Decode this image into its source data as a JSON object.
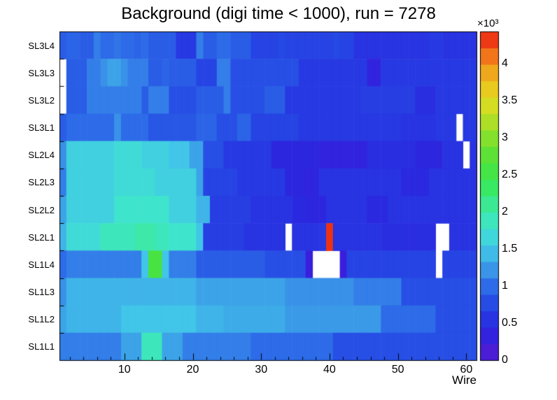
{
  "chart_data": {
    "type": "heatmap",
    "title": "Background (digi time < 1000), run = 7278",
    "xlabel": "Wire",
    "x_range": [
      1,
      61
    ],
    "x_ticks": [
      10,
      20,
      30,
      40,
      50,
      60
    ],
    "z_scale_label": "×10³",
    "z_ticks": [
      0,
      0.5,
      1,
      1.5,
      2,
      2.5,
      3,
      3.5,
      4
    ],
    "zmax": 4433,
    "n_wires": 61,
    "palette_levels": 20,
    "legend_position": "right",
    "grid": false,
    "empty_bin_color": "#ffffff",
    "palette_stops": [
      [
        0.0,
        "#5a1ecf"
      ],
      [
        0.05,
        "#3b1cdb"
      ],
      [
        0.1,
        "#2a28e0"
      ],
      [
        0.17,
        "#2549e4"
      ],
      [
        0.23,
        "#2e6ee8"
      ],
      [
        0.28,
        "#3b99e8"
      ],
      [
        0.34,
        "#41c6e8"
      ],
      [
        0.4,
        "#3fe3d1"
      ],
      [
        0.46,
        "#3de9a2"
      ],
      [
        0.53,
        "#38e95e"
      ],
      [
        0.6,
        "#4ce23b"
      ],
      [
        0.68,
        "#87e02b"
      ],
      [
        0.75,
        "#c1df23"
      ],
      [
        0.8,
        "#e6da20"
      ],
      [
        0.87,
        "#efad1c"
      ],
      [
        0.93,
        "#f2701a"
      ],
      [
        1.0,
        "#ea1b10"
      ]
    ],
    "rows_order": "top_to_bottom",
    "rows": [
      {
        "label": "SL3L4",
        "values": [
          900,
          950,
          950,
          900,
          900,
          1100,
          1000,
          1000,
          1050,
          1000,
          1000,
          950,
          1000,
          900,
          900,
          900,
          900,
          600,
          600,
          600,
          1100,
          900,
          900,
          1000,
          1000,
          900,
          900,
          900,
          700,
          700,
          700,
          700,
          750,
          700,
          700,
          700,
          700,
          700,
          700,
          700,
          750,
          700,
          700,
          550,
          550,
          550,
          550,
          550,
          550,
          550,
          550,
          550,
          550,
          550,
          600,
          600,
          550,
          550,
          550,
          550,
          550
        ]
      },
      {
        "label": "SL3L3",
        "values": [
          null,
          900,
          900,
          900,
          1100,
          1100,
          1200,
          1300,
          1300,
          1200,
          1100,
          1100,
          1100,
          900,
          900,
          950,
          900,
          900,
          900,
          900,
          700,
          700,
          700,
          1100,
          1100,
          800,
          800,
          800,
          800,
          800,
          800,
          800,
          800,
          800,
          800,
          600,
          600,
          600,
          600,
          600,
          600,
          600,
          600,
          600,
          600,
          350,
          350,
          600,
          600,
          600,
          600,
          600,
          600,
          600,
          600,
          600,
          600,
          600,
          600,
          600,
          600
        ]
      },
      {
        "label": "SL3L2",
        "values": [
          null,
          900,
          900,
          900,
          1100,
          1100,
          1100,
          1100,
          1100,
          1100,
          1100,
          1100,
          900,
          1100,
          1100,
          1100,
          800,
          800,
          800,
          800,
          900,
          900,
          900,
          900,
          1100,
          800,
          800,
          800,
          800,
          800,
          900,
          900,
          900,
          600,
          600,
          600,
          600,
          600,
          600,
          600,
          600,
          600,
          600,
          600,
          650,
          650,
          650,
          650,
          650,
          650,
          650,
          650,
          500,
          500,
          500,
          600,
          600,
          600,
          600,
          600,
          600
        ]
      },
      {
        "label": "SL3L1",
        "values": [
          900,
          1000,
          1000,
          1000,
          1000,
          1000,
          1000,
          1000,
          1200,
          1000,
          1000,
          1000,
          1000,
          850,
          850,
          850,
          850,
          850,
          850,
          850,
          950,
          950,
          950,
          800,
          800,
          800,
          950,
          950,
          700,
          700,
          700,
          700,
          700,
          700,
          700,
          600,
          600,
          600,
          600,
          600,
          600,
          600,
          600,
          600,
          600,
          600,
          600,
          600,
          600,
          600,
          550,
          550,
          550,
          550,
          550,
          600,
          600,
          600,
          null,
          600,
          600
        ]
      },
      {
        "label": "SL2L4",
        "values": [
          1200,
          1600,
          1600,
          1600,
          1600,
          1600,
          1600,
          1600,
          1700,
          1700,
          1700,
          1700,
          1600,
          1600,
          1600,
          1600,
          1500,
          1500,
          1500,
          1300,
          1300,
          800,
          800,
          800,
          600,
          600,
          600,
          600,
          600,
          600,
          600,
          400,
          400,
          400,
          400,
          400,
          400,
          400,
          350,
          350,
          350,
          350,
          350,
          350,
          350,
          500,
          500,
          500,
          500,
          500,
          500,
          500,
          400,
          400,
          400,
          400,
          550,
          550,
          550,
          null,
          550
        ]
      },
      {
        "label": "SL2L3",
        "values": [
          1100,
          1600,
          1600,
          1600,
          1600,
          1600,
          1600,
          1600,
          1700,
          1700,
          1700,
          1700,
          1700,
          1700,
          1600,
          1600,
          1600,
          1600,
          1600,
          1600,
          1300,
          700,
          700,
          700,
          700,
          700,
          600,
          600,
          600,
          600,
          600,
          600,
          600,
          400,
          400,
          400,
          350,
          400,
          550,
          550,
          550,
          550,
          550,
          550,
          550,
          550,
          550,
          550,
          550,
          550,
          450,
          450,
          450,
          450,
          550,
          550,
          550,
          550,
          550,
          550,
          550
        ]
      },
      {
        "label": "SL2L2",
        "values": [
          1300,
          1600,
          1600,
          1600,
          1600,
          1600,
          1600,
          1600,
          1800,
          1800,
          1800,
          1800,
          1800,
          1800,
          1800,
          1800,
          1600,
          1600,
          1600,
          1600,
          1400,
          1400,
          650,
          650,
          650,
          650,
          650,
          650,
          550,
          550,
          550,
          550,
          550,
          550,
          450,
          450,
          400,
          400,
          400,
          550,
          550,
          550,
          550,
          550,
          550,
          450,
          450,
          450,
          550,
          550,
          550,
          550,
          550,
          550,
          550,
          550,
          550,
          550,
          550,
          550,
          550
        ]
      },
      {
        "label": "SL2L1",
        "values": [
          1400,
          1700,
          1700,
          1700,
          1700,
          1700,
          1900,
          1900,
          1900,
          1900,
          1900,
          2000,
          2000,
          2000,
          1900,
          1900,
          1800,
          1800,
          1800,
          1800,
          1500,
          650,
          650,
          650,
          650,
          650,
          650,
          550,
          550,
          550,
          550,
          550,
          550,
          null,
          550,
          550,
          550,
          550,
          600,
          4350,
          550,
          550,
          550,
          550,
          550,
          550,
          550,
          500,
          500,
          500,
          500,
          500,
          500,
          500,
          500,
          null,
          null,
          550,
          550,
          550,
          550
        ]
      },
      {
        "label": "SL1L4",
        "values": [
          1000,
          1100,
          1100,
          1100,
          1100,
          1100,
          1100,
          1100,
          1100,
          1100,
          1100,
          1100,
          1500,
          2600,
          2600,
          1500,
          1100,
          1100,
          1100,
          1100,
          900,
          900,
          900,
          900,
          900,
          900,
          900,
          900,
          900,
          900,
          800,
          800,
          800,
          800,
          800,
          800,
          250,
          null,
          null,
          null,
          null,
          250,
          700,
          700,
          700,
          700,
          700,
          700,
          700,
          700,
          700,
          700,
          700,
          700,
          700,
          null,
          700,
          700,
          700,
          700,
          700
        ]
      },
      {
        "label": "SL1L3",
        "values": [
          1200,
          1400,
          1400,
          1400,
          1400,
          1400,
          1400,
          1400,
          1400,
          1400,
          1400,
          1400,
          1400,
          1400,
          1400,
          1400,
          1400,
          1400,
          1400,
          1400,
          1300,
          1300,
          1300,
          1300,
          1300,
          1300,
          1300,
          1300,
          1300,
          1300,
          1300,
          1300,
          1300,
          1200,
          1200,
          1200,
          1200,
          1200,
          1200,
          1200,
          1200,
          1200,
          1200,
          1100,
          1100,
          1100,
          1100,
          1100,
          1100,
          1100,
          800,
          800,
          800,
          800,
          800,
          800,
          800,
          800,
          800,
          800,
          800
        ]
      },
      {
        "label": "SL1L2",
        "values": [
          1300,
          1400,
          1400,
          1400,
          1400,
          1400,
          1400,
          1400,
          1400,
          1500,
          1500,
          1500,
          1500,
          1500,
          1500,
          1500,
          1500,
          1500,
          1500,
          1500,
          1400,
          1400,
          1400,
          1400,
          1350,
          1350,
          1350,
          1350,
          1350,
          1350,
          1350,
          1350,
          1350,
          1250,
          1250,
          1250,
          1250,
          1250,
          1250,
          1250,
          1250,
          1250,
          1250,
          1250,
          1250,
          1250,
          1250,
          1000,
          1000,
          1000,
          1000,
          1000,
          1000,
          1000,
          1000,
          800,
          800,
          800,
          800,
          800,
          800
        ]
      },
      {
        "label": "SL1L1",
        "values": [
          1100,
          1100,
          1100,
          1100,
          1100,
          1100,
          1100,
          1100,
          1100,
          1300,
          1300,
          1300,
          1900,
          1900,
          1900,
          1300,
          1300,
          1300,
          1100,
          1100,
          1100,
          1100,
          1100,
          1100,
          1100,
          1100,
          1100,
          1100,
          1000,
          1000,
          1000,
          1000,
          1000,
          1000,
          1000,
          1000,
          1000,
          1000,
          1000,
          1000,
          800,
          800,
          800,
          800,
          800,
          800,
          800,
          800,
          800,
          800,
          800,
          800,
          800,
          800,
          800,
          800,
          800,
          800,
          800,
          800,
          800
        ]
      }
    ],
    "hot_spot_note": {
      "row": "SL2L1",
      "wire": 40,
      "value": 4350
    }
  }
}
